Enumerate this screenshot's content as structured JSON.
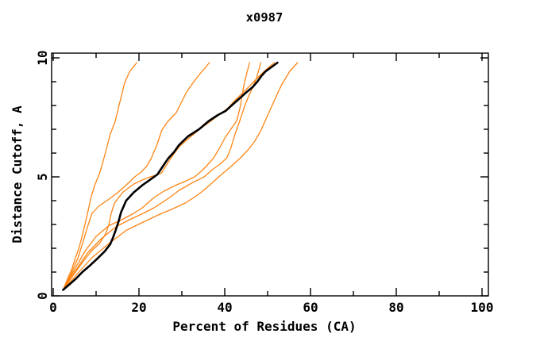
{
  "title": "x0987",
  "axes": {
    "x": {
      "label": "Percent of Residues (CA)",
      "min": 0,
      "max": 100,
      "major_ticks": [
        0,
        20,
        40,
        60,
        80,
        100
      ],
      "major_tick_labels": [
        "0",
        "20",
        "40",
        "60",
        "80",
        "100"
      ],
      "minor_step": 10
    },
    "y": {
      "label": "Distance Cutoff, A",
      "min": 0,
      "max": 10,
      "major_ticks": [
        0,
        5,
        10
      ],
      "major_tick_labels": [
        "0",
        "5",
        "10"
      ],
      "minor_step": 1
    }
  },
  "colors": {
    "background": "#ffffff",
    "frame": "#000000",
    "orange_trace": "#ff8514",
    "black_trace": "#000000"
  },
  "chart_data": {
    "type": "line",
    "title": "x0987",
    "xlabel": "Percent of Residues (CA)",
    "ylabel": "Distance Cutoff, A",
    "xlim": [
      0,
      102
    ],
    "ylim": [
      0,
      10.2
    ],
    "grid": false,
    "legend": null,
    "tick_style": "inward, minor x every 10, minor y every 1, ticks on all four sides",
    "series": [
      {
        "name": "orange-1",
        "color": "#ff8514",
        "width": 1.3,
        "points": [
          [
            2.3,
            0.25
          ],
          [
            3.4,
            0.75
          ],
          [
            4.3,
            1.1
          ],
          [
            5.1,
            1.55
          ],
          [
            5.9,
            1.95
          ],
          [
            6.6,
            2.4
          ],
          [
            7.2,
            2.85
          ],
          [
            7.8,
            3.3
          ],
          [
            8.4,
            3.8
          ],
          [
            8.9,
            4.2
          ],
          [
            9.8,
            4.7
          ],
          [
            10.7,
            5.1
          ],
          [
            11.4,
            5.5
          ],
          [
            12.3,
            6.1
          ],
          [
            13.3,
            6.8
          ],
          [
            14.4,
            7.3
          ],
          [
            15.2,
            7.9
          ],
          [
            15.9,
            8.4
          ],
          [
            16.5,
            8.85
          ],
          [
            17.0,
            9.1
          ],
          [
            17.9,
            9.45
          ],
          [
            19.5,
            9.8
          ]
        ]
      },
      {
        "name": "orange-2",
        "color": "#ff8514",
        "width": 1.3,
        "points": [
          [
            2.3,
            0.25
          ],
          [
            4.2,
            0.95
          ],
          [
            5.8,
            1.6
          ],
          [
            7.0,
            2.3
          ],
          [
            7.9,
            2.85
          ],
          [
            9.0,
            3.45
          ],
          [
            10.5,
            3.75
          ],
          [
            12.5,
            4.0
          ],
          [
            14.8,
            4.3
          ],
          [
            17.0,
            4.65
          ],
          [
            19.0,
            5.0
          ],
          [
            20.5,
            5.2
          ],
          [
            21.8,
            5.45
          ],
          [
            22.9,
            5.8
          ],
          [
            24.2,
            6.35
          ],
          [
            25.3,
            6.95
          ],
          [
            26.6,
            7.3
          ],
          [
            28.7,
            7.7
          ],
          [
            29.8,
            8.1
          ],
          [
            31.2,
            8.6
          ],
          [
            32.8,
            9.0
          ],
          [
            34.3,
            9.35
          ],
          [
            35.3,
            9.55
          ],
          [
            36.4,
            9.8
          ]
        ]
      },
      {
        "name": "orange-3",
        "color": "#ff8514",
        "width": 1.3,
        "points": [
          [
            2.3,
            0.25
          ],
          [
            4.0,
            0.7
          ],
          [
            5.6,
            1.1
          ],
          [
            7.2,
            1.5
          ],
          [
            9.0,
            1.9
          ],
          [
            10.8,
            2.2
          ],
          [
            12.2,
            2.6
          ],
          [
            13.0,
            3.0
          ],
          [
            13.5,
            3.45
          ],
          [
            14.3,
            3.9
          ],
          [
            16.2,
            4.35
          ],
          [
            18.8,
            4.7
          ],
          [
            21.8,
            4.95
          ],
          [
            25.2,
            5.15
          ],
          [
            27.3,
            5.75
          ],
          [
            29.3,
            6.25
          ],
          [
            31.8,
            6.65
          ],
          [
            34.5,
            7.05
          ],
          [
            36.8,
            7.35
          ],
          [
            39.0,
            7.65
          ],
          [
            40.8,
            7.9
          ],
          [
            42.3,
            8.2
          ],
          [
            44.0,
            8.5
          ],
          [
            45.7,
            8.8
          ],
          [
            47.3,
            9.1
          ],
          [
            49.0,
            9.4
          ],
          [
            50.2,
            9.6
          ],
          [
            51.6,
            9.8
          ]
        ]
      },
      {
        "name": "orange-4",
        "color": "#ff8514",
        "width": 1.3,
        "points": [
          [
            2.3,
            0.25
          ],
          [
            4.8,
            1.05
          ],
          [
            7.5,
            1.9
          ],
          [
            10.0,
            2.5
          ],
          [
            13.0,
            2.95
          ],
          [
            16.0,
            3.2
          ],
          [
            18.6,
            3.45
          ],
          [
            20.8,
            3.7
          ],
          [
            23.3,
            4.1
          ],
          [
            25.8,
            4.4
          ],
          [
            28.2,
            4.62
          ],
          [
            30.6,
            4.8
          ],
          [
            33.0,
            5.0
          ],
          [
            34.9,
            5.3
          ],
          [
            36.2,
            5.55
          ],
          [
            37.3,
            5.77
          ],
          [
            38.6,
            6.15
          ],
          [
            40.1,
            6.65
          ],
          [
            41.6,
            7.05
          ],
          [
            42.8,
            7.35
          ],
          [
            43.5,
            7.85
          ],
          [
            43.9,
            8.25
          ],
          [
            44.4,
            8.8
          ],
          [
            44.8,
            9.1
          ],
          [
            45.2,
            9.4
          ],
          [
            45.8,
            9.8
          ]
        ]
      },
      {
        "name": "orange-5",
        "color": "#ff8514",
        "width": 1.3,
        "points": [
          [
            2.3,
            0.25
          ],
          [
            5.0,
            1.0
          ],
          [
            8.0,
            1.8
          ],
          [
            11.2,
            2.4
          ],
          [
            14.6,
            2.9
          ],
          [
            17.8,
            3.2
          ],
          [
            20.8,
            3.45
          ],
          [
            23.5,
            3.7
          ],
          [
            26.5,
            4.05
          ],
          [
            29.5,
            4.45
          ],
          [
            32.4,
            4.75
          ],
          [
            35.2,
            5.0
          ],
          [
            37.1,
            5.3
          ],
          [
            39.0,
            5.55
          ],
          [
            40.5,
            5.8
          ],
          [
            41.4,
            6.2
          ],
          [
            42.4,
            6.8
          ],
          [
            43.4,
            7.3
          ],
          [
            44.7,
            8.0
          ],
          [
            45.6,
            8.4
          ],
          [
            46.5,
            8.75
          ],
          [
            47.4,
            9.15
          ],
          [
            48.4,
            9.8
          ]
        ]
      },
      {
        "name": "orange-6",
        "color": "#ff8514",
        "width": 1.3,
        "points": [
          [
            2.3,
            0.25
          ],
          [
            5.5,
            0.9
          ],
          [
            9.0,
            1.6
          ],
          [
            13.0,
            2.2
          ],
          [
            17.0,
            2.75
          ],
          [
            21.0,
            3.1
          ],
          [
            25.1,
            3.45
          ],
          [
            27.8,
            3.65
          ],
          [
            30.8,
            3.9
          ],
          [
            33.4,
            4.2
          ],
          [
            35.5,
            4.5
          ],
          [
            37.1,
            4.75
          ],
          [
            38.6,
            5.0
          ],
          [
            41.2,
            5.4
          ],
          [
            43.7,
            5.8
          ],
          [
            45.5,
            6.15
          ],
          [
            47.0,
            6.5
          ],
          [
            48.3,
            6.9
          ],
          [
            49.3,
            7.3
          ],
          [
            50.3,
            7.7
          ],
          [
            51.3,
            8.1
          ],
          [
            52.3,
            8.5
          ],
          [
            53.2,
            8.85
          ],
          [
            54.2,
            9.15
          ],
          [
            55.2,
            9.45
          ],
          [
            57.0,
            9.8
          ]
        ]
      },
      {
        "name": "black-bold",
        "color": "#000000",
        "width": 2.6,
        "points": [
          [
            2.3,
            0.25
          ],
          [
            3.9,
            0.5
          ],
          [
            5.3,
            0.72
          ],
          [
            6.8,
            1.0
          ],
          [
            8.6,
            1.28
          ],
          [
            10.1,
            1.53
          ],
          [
            12.0,
            1.87
          ],
          [
            13.3,
            2.17
          ],
          [
            13.9,
            2.43
          ],
          [
            14.6,
            2.77
          ],
          [
            15.2,
            3.1
          ],
          [
            15.8,
            3.5
          ],
          [
            17.0,
            4.0
          ],
          [
            18.8,
            4.35
          ],
          [
            20.8,
            4.65
          ],
          [
            22.6,
            4.88
          ],
          [
            24.3,
            5.1
          ],
          [
            25.6,
            5.45
          ],
          [
            26.8,
            5.77
          ],
          [
            28.2,
            6.05
          ],
          [
            29.3,
            6.33
          ],
          [
            31.4,
            6.7
          ],
          [
            34.0,
            7.0
          ],
          [
            36.3,
            7.35
          ],
          [
            38.4,
            7.6
          ],
          [
            40.2,
            7.77
          ],
          [
            41.6,
            8.0
          ],
          [
            43.3,
            8.27
          ],
          [
            45.0,
            8.55
          ],
          [
            46.5,
            8.77
          ],
          [
            47.6,
            9.0
          ],
          [
            48.6,
            9.25
          ],
          [
            49.5,
            9.43
          ],
          [
            50.8,
            9.6
          ],
          [
            52.3,
            9.8
          ]
        ]
      }
    ]
  }
}
